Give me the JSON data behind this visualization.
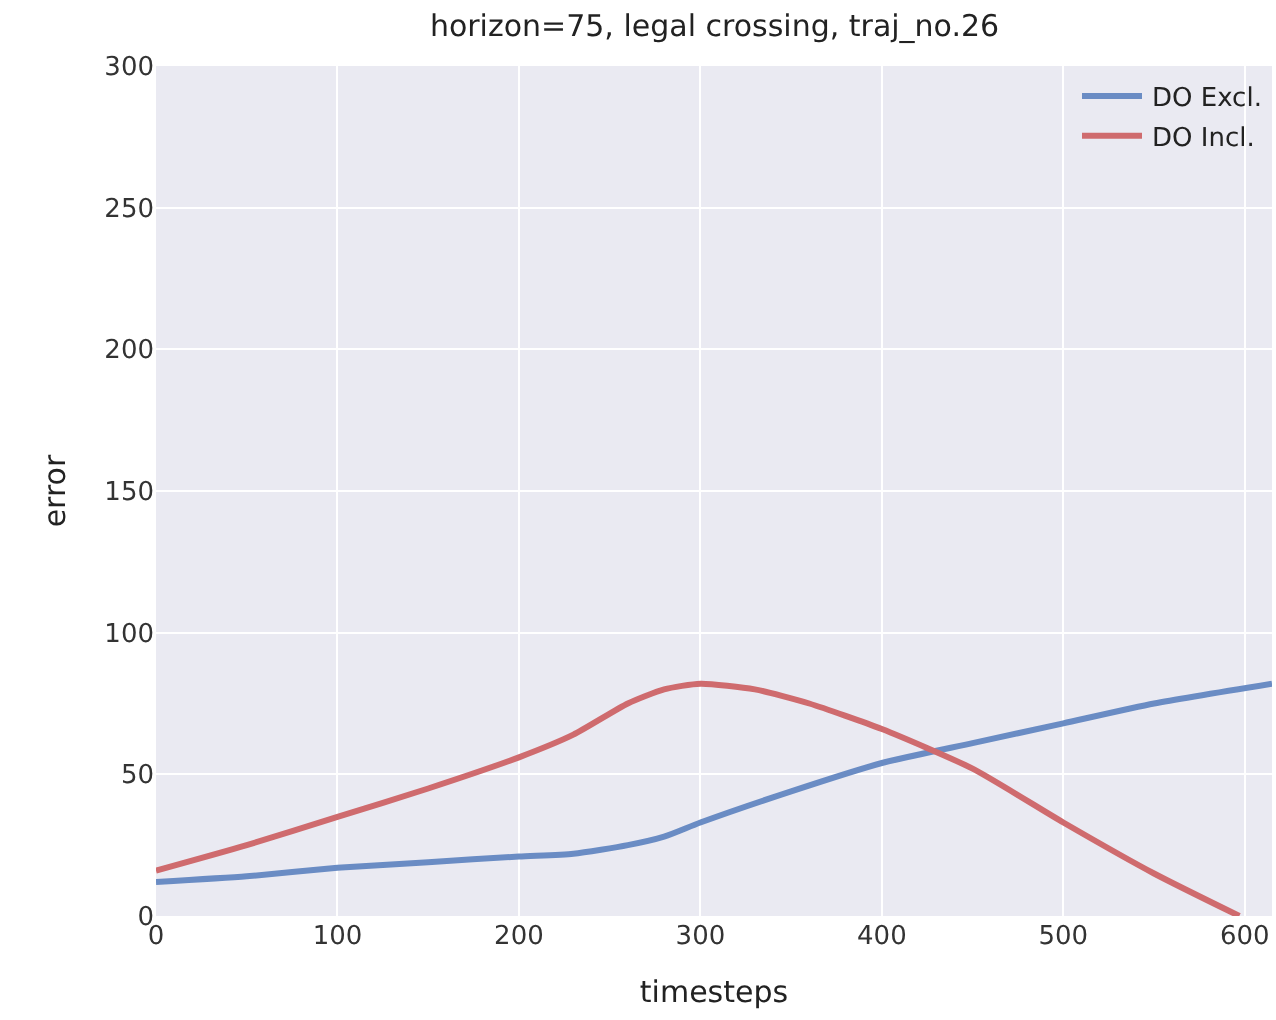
{
  "chart_data": {
    "type": "line",
    "title": "horizon=75, legal crossing, traj_no.26",
    "xlabel": "timesteps",
    "ylabel": "error",
    "xlim": [
      0,
      615
    ],
    "xticks": [
      0,
      100,
      200,
      300,
      400,
      500,
      600
    ],
    "ylim": [
      0,
      300
    ],
    "yticks": [
      0,
      50,
      100,
      150,
      200,
      250,
      300
    ],
    "grid": true,
    "legend": "top right",
    "series": [
      {
        "name": "DO Excl.",
        "color": "#6a8cc4",
        "x": [
          0,
          50,
          100,
          150,
          200,
          230,
          260,
          280,
          300,
          350,
          400,
          450,
          500,
          550,
          615
        ],
        "values": [
          12,
          14,
          17,
          19,
          21,
          22,
          25,
          28,
          33,
          44,
          54,
          61,
          68,
          75,
          82
        ]
      },
      {
        "name": "DO Incl.",
        "color": "#cf6b6e",
        "x": [
          0,
          50,
          100,
          150,
          200,
          230,
          260,
          280,
          300,
          330,
          360,
          400,
          450,
          500,
          550,
          597
        ],
        "values": [
          16,
          25,
          35,
          45,
          56,
          64,
          75,
          80,
          82,
          80,
          75,
          66,
          52,
          33,
          15,
          0
        ]
      }
    ]
  }
}
